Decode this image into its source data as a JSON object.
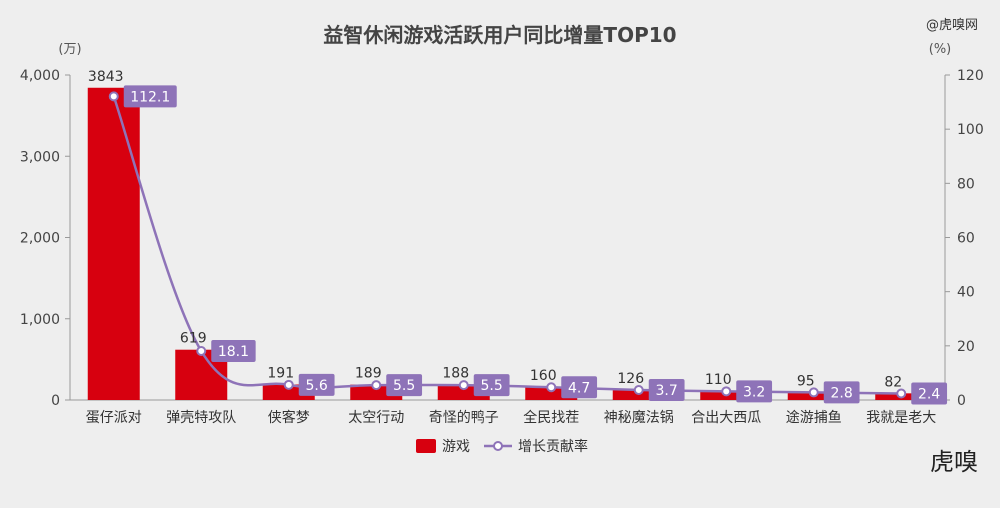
{
  "watermark": "@虎嗅网",
  "logo_text": "虎嗅",
  "colors": {
    "bar": "#d7000f",
    "line": "#8e73b8",
    "label_box": "#8e73b8",
    "axis": "#999999",
    "background": "#eeeeee"
  },
  "chart_data": {
    "type": "bar",
    "title": "益智休闲游戏活跃用户同比增量TOP10",
    "left_unit": "(万)",
    "right_unit": "(%)",
    "categories": [
      "蛋仔派对",
      "弹壳特攻队",
      "侠客梦",
      "太空行动",
      "奇怪的鸭子",
      "全民找茬",
      "神秘魔法锅",
      "合出大西瓜",
      "途游捕鱼",
      "我就是老大"
    ],
    "series": [
      {
        "name": "游戏",
        "type": "bar",
        "axis": "left",
        "values": [
          3843,
          619,
          191,
          189,
          188,
          160,
          126,
          110,
          95,
          82
        ]
      },
      {
        "name": "增长贡献率",
        "type": "line",
        "axis": "right",
        "values": [
          112.1,
          18.1,
          5.6,
          5.5,
          5.5,
          4.7,
          3.7,
          3.2,
          2.8,
          2.4
        ]
      }
    ],
    "left_ylim": [
      0,
      4000
    ],
    "left_ticks": [
      "0",
      "1,000",
      "2,000",
      "3,000",
      "4,000"
    ],
    "right_ylim": [
      0,
      120
    ],
    "right_ticks": [
      "0",
      "20",
      "40",
      "60",
      "80",
      "100",
      "120"
    ],
    "legend_position": "bottom-center",
    "grid": false
  }
}
